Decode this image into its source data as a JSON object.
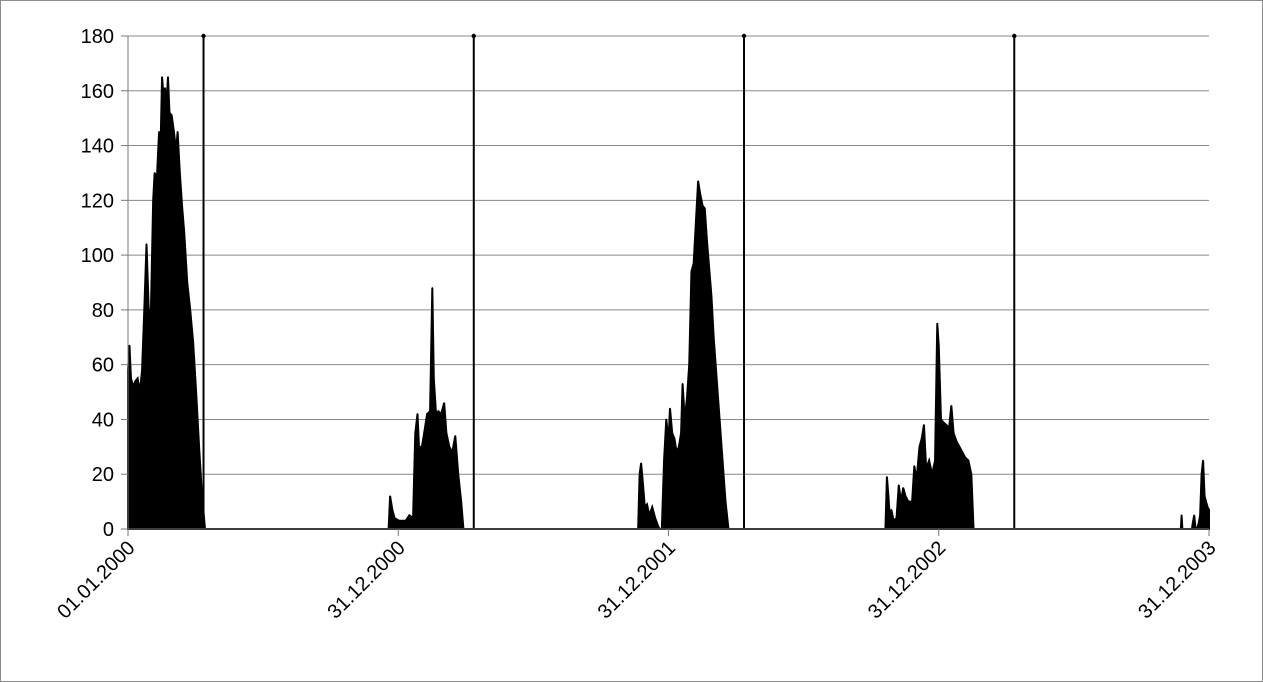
{
  "chart_data": {
    "type": "area",
    "title": "",
    "xlabel": "",
    "ylabel": "",
    "ylim": [
      0,
      180
    ],
    "yticks": [
      0,
      20,
      40,
      60,
      80,
      100,
      120,
      140,
      160,
      180
    ],
    "xlim": [
      "01.01.2000",
      "31.12.2003"
    ],
    "xtick_labels": [
      "01.01.2000",
      "31.12.2000",
      "31.12.2001",
      "31.12.2002",
      "31.12.2003"
    ],
    "grid": "horizontal",
    "legend": "none",
    "colors": {
      "fill": "#000000",
      "grid": "#888888",
      "axis": "#777777"
    },
    "markers": [
      {
        "date": "12.04.2000",
        "value": 180
      },
      {
        "date": "12.04.2001",
        "value": 180
      },
      {
        "date": "12.04.2002",
        "value": 180
      },
      {
        "date": "12.04.2003",
        "value": 180
      }
    ],
    "series": [
      {
        "points": [
          [
            "01.01.2000",
            58
          ],
          [
            "03.01.2000",
            67
          ],
          [
            "05.01.2000",
            55
          ],
          [
            "08.01.2000",
            52
          ],
          [
            "11.01.2000",
            54
          ],
          [
            "14.01.2000",
            55
          ],
          [
            "17.01.2000",
            50
          ],
          [
            "20.01.2000",
            58
          ],
          [
            "23.01.2000",
            80
          ],
          [
            "26.01.2000",
            104
          ],
          [
            "29.01.2000",
            80
          ],
          [
            "01.02.2000",
            80
          ],
          [
            "04.02.2000",
            120
          ],
          [
            "06.02.2000",
            130
          ],
          [
            "09.02.2000",
            128
          ],
          [
            "12.02.2000",
            145
          ],
          [
            "14.02.2000",
            140
          ],
          [
            "16.02.2000",
            165
          ],
          [
            "18.02.2000",
            158
          ],
          [
            "20.02.2000",
            161
          ],
          [
            "22.02.2000",
            155
          ],
          [
            "24.02.2000",
            165
          ],
          [
            "26.02.2000",
            152
          ],
          [
            "29.02.2000",
            151
          ],
          [
            "03.03.2000",
            145
          ],
          [
            "06.03.2000",
            138
          ],
          [
            "08.03.2000",
            145
          ],
          [
            "11.03.2000",
            130
          ],
          [
            "14.03.2000",
            118
          ],
          [
            "17.03.2000",
            108
          ],
          [
            "21.03.2000",
            90
          ],
          [
            "25.03.2000",
            80
          ],
          [
            "29.03.2000",
            68
          ],
          [
            "02.04.2000",
            50
          ],
          [
            "06.04.2000",
            30
          ],
          [
            "10.04.2000",
            12
          ],
          [
            "14.04.2000",
            0
          ],
          [
            "18.12.2000",
            0
          ],
          [
            "20.12.2000",
            12
          ],
          [
            "23.12.2000",
            7
          ],
          [
            "26.12.2000",
            4
          ],
          [
            "01.01.2001",
            3
          ],
          [
            "10.01.2001",
            3
          ],
          [
            "15.01.2001",
            5
          ],
          [
            "20.01.2001",
            4
          ],
          [
            "23.01.2001",
            35
          ],
          [
            "26.01.2001",
            42
          ],
          [
            "28.01.2001",
            30
          ],
          [
            "01.02.2001",
            30
          ],
          [
            "04.02.2001",
            35
          ],
          [
            "08.02.2001",
            42
          ],
          [
            "12.02.2001",
            43
          ],
          [
            "15.02.2001",
            88
          ],
          [
            "17.02.2001",
            55
          ],
          [
            "20.02.2001",
            42
          ],
          [
            "23.02.2001",
            43
          ],
          [
            "27.02.2001",
            42
          ],
          [
            "03.03.2001",
            46
          ],
          [
            "06.03.2001",
            35
          ],
          [
            "10.03.2001",
            30
          ],
          [
            "14.03.2001",
            28
          ],
          [
            "18.03.2001",
            34
          ],
          [
            "22.03.2001",
            20
          ],
          [
            "26.03.2001",
            10
          ],
          [
            "29.03.2001",
            0
          ],
          [
            "20.11.2001",
            0
          ],
          [
            "22.11.2001",
            20
          ],
          [
            "24.11.2001",
            24
          ],
          [
            "26.11.2001",
            18
          ],
          [
            "29.11.2001",
            8
          ],
          [
            "02.12.2001",
            9
          ],
          [
            "05.12.2001",
            5
          ],
          [
            "09.12.2001",
            8
          ],
          [
            "13.12.2001",
            4
          ],
          [
            "17.12.2001",
            1
          ],
          [
            "19.12.2001",
            0
          ],
          [
            "22.12.2001",
            0
          ],
          [
            "25.12.2001",
            25
          ],
          [
            "28.12.2001",
            40
          ],
          [
            "31.12.2001",
            32
          ],
          [
            "02.01.2002",
            44
          ],
          [
            "05.01.2002",
            35
          ],
          [
            "08.01.2002",
            33
          ],
          [
            "11.01.2002",
            28
          ],
          [
            "14.01.2002",
            30
          ],
          [
            "17.01.2002",
            35
          ],
          [
            "19.01.2002",
            53
          ],
          [
            "22.01.2002",
            40
          ],
          [
            "25.01.2002",
            48
          ],
          [
            "28.01.2002",
            60
          ],
          [
            "31.01.2002",
            94
          ],
          [
            "03.02.2002",
            97
          ],
          [
            "06.02.2002",
            112
          ],
          [
            "09.02.2002",
            127
          ],
          [
            "12.02.2002",
            122
          ],
          [
            "15.02.2002",
            118
          ],
          [
            "18.02.2002",
            117
          ],
          [
            "21.02.2002",
            105
          ],
          [
            "24.02.2002",
            95
          ],
          [
            "27.02.2002",
            85
          ],
          [
            "02.03.2002",
            70
          ],
          [
            "06.03.2002",
            55
          ],
          [
            "10.03.2002",
            40
          ],
          [
            "14.03.2002",
            25
          ],
          [
            "18.03.2002",
            10
          ],
          [
            "22.03.2002",
            0
          ],
          [
            "20.10.2002",
            0
          ],
          [
            "22.10.2002",
            19
          ],
          [
            "24.10.2002",
            12
          ],
          [
            "26.10.2002",
            4
          ],
          [
            "28.10.2002",
            7
          ],
          [
            "31.10.2002",
            3
          ],
          [
            "04.11.2002",
            4
          ],
          [
            "07.11.2002",
            16
          ],
          [
            "10.11.2002",
            10
          ],
          [
            "13.11.2002",
            15
          ],
          [
            "16.11.2002",
            12
          ],
          [
            "20.11.2002",
            10
          ],
          [
            "25.11.2002",
            10
          ],
          [
            "28.11.2002",
            23
          ],
          [
            "01.12.2002",
            18
          ],
          [
            "05.12.2002",
            30
          ],
          [
            "08.12.2002",
            33
          ],
          [
            "11.12.2002",
            38
          ],
          [
            "14.12.2002",
            22
          ],
          [
            "18.12.2002",
            25
          ],
          [
            "22.12.2002",
            20
          ],
          [
            "26.12.2002",
            25
          ],
          [
            "29.12.2002",
            75
          ],
          [
            "31.12.2002",
            67
          ],
          [
            "03.01.2003",
            40
          ],
          [
            "06.01.2003",
            39
          ],
          [
            "10.01.2003",
            38
          ],
          [
            "14.01.2003",
            37
          ],
          [
            "17.01.2003",
            45
          ],
          [
            "20.01.2003",
            35
          ],
          [
            "24.01.2003",
            32
          ],
          [
            "28.01.2003",
            30
          ],
          [
            "01.02.2003",
            28
          ],
          [
            "05.02.2003",
            26
          ],
          [
            "09.02.2003",
            25
          ],
          [
            "13.02.2003",
            20
          ],
          [
            "16.02.2003",
            0
          ],
          [
            "23.11.2003",
            0
          ],
          [
            "24.11.2003",
            5
          ],
          [
            "25.11.2003",
            0
          ],
          [
            "08.12.2003",
            0
          ],
          [
            "09.12.2003",
            2
          ],
          [
            "11.12.2003",
            5
          ],
          [
            "13.12.2003",
            0
          ],
          [
            "15.12.2003",
            0
          ],
          [
            "17.12.2003",
            2
          ],
          [
            "19.12.2003",
            5
          ],
          [
            "21.12.2003",
            20
          ],
          [
            "23.12.2003",
            25
          ],
          [
            "25.12.2003",
            12
          ],
          [
            "27.12.2003",
            10
          ],
          [
            "29.12.2003",
            8
          ],
          [
            "31.12.2003",
            7
          ]
        ]
      }
    ]
  }
}
